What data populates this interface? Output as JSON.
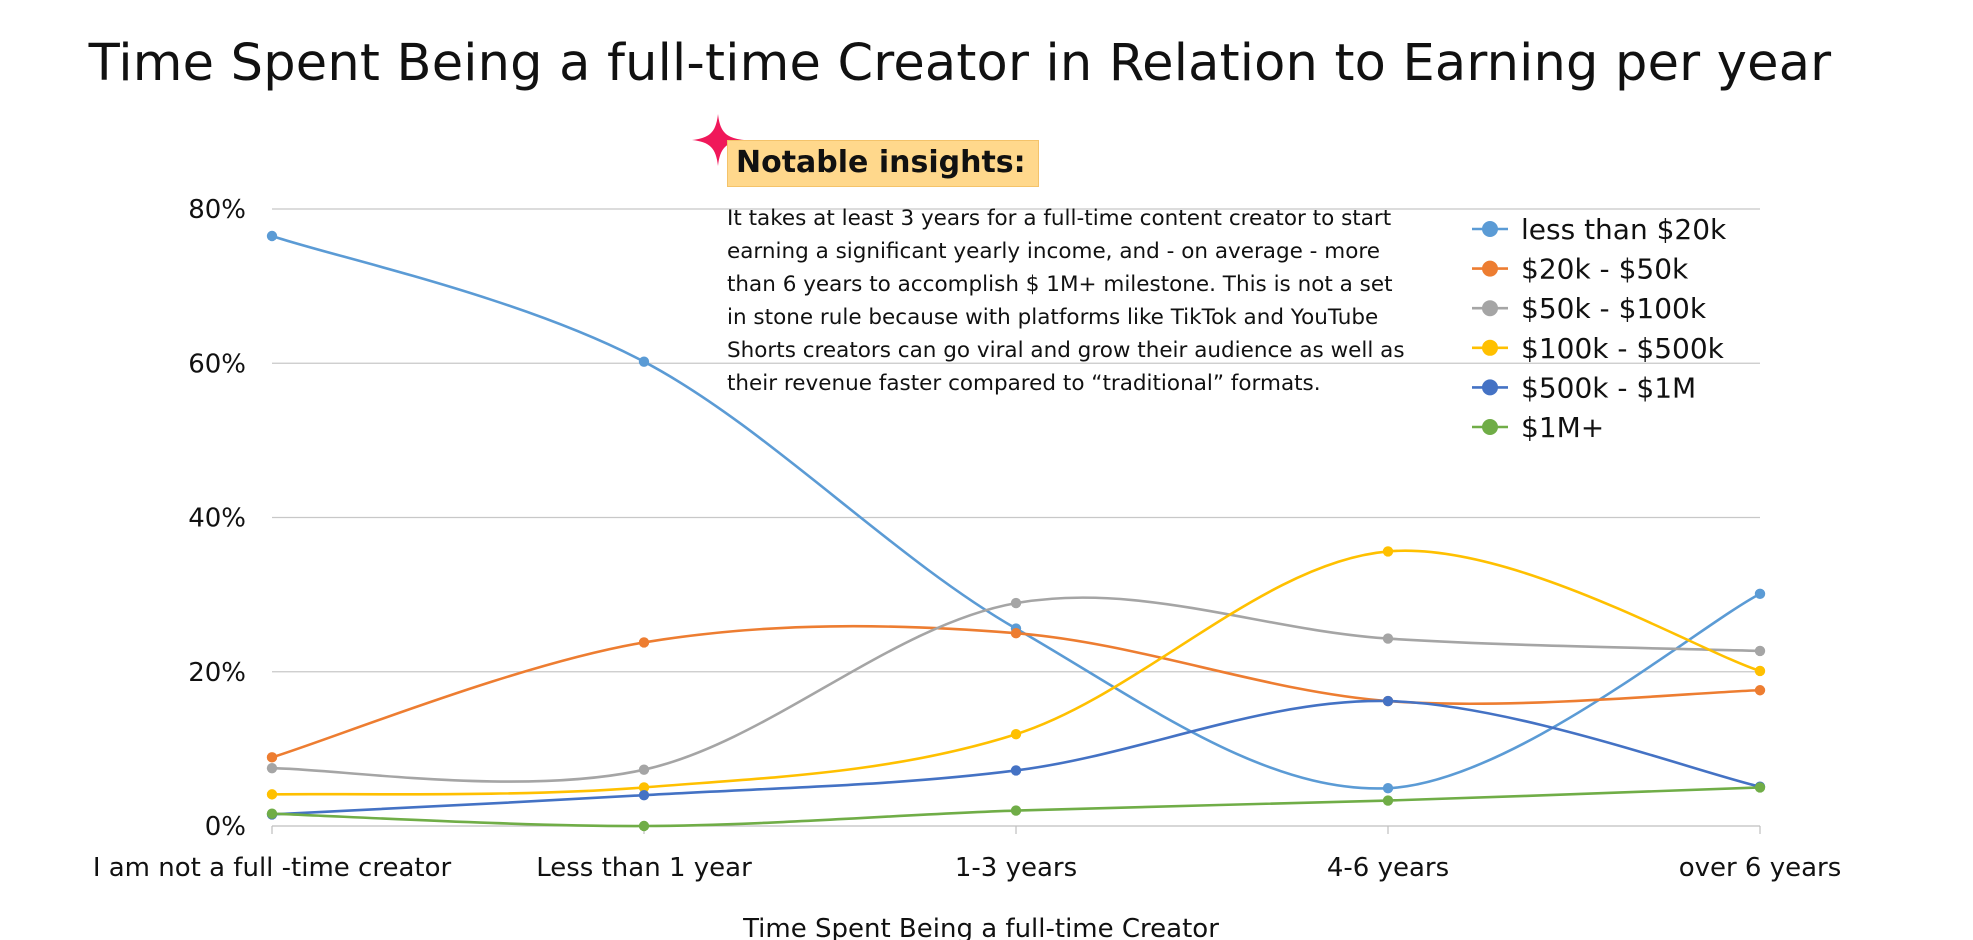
{
  "title": "Time Spent Being a full-time Creator in Relation to Earning per year",
  "insights": {
    "heading": "Notable insights:",
    "body": "It takes at least 3 years for a full-time content creator to start earning a significant yearly income, and - on average - more than 6 years to accomplish $ 1M+ milestone. This is not a set in stone rule because with platforms like TikTok and YouTube Shorts creators can go viral and grow their audience as well as their revenue faster compared to “traditional” formats.",
    "icon": "sparkle-icon",
    "accent": "#f0185a"
  },
  "chart_data": {
    "type": "line",
    "title": "Time Spent Being a full-time Creator in Relation to Earning per year",
    "xlabel": "Time Spent Being a full-time Creator",
    "ylabel": "",
    "ylim": [
      0,
      80
    ],
    "yticks": [
      "0%",
      "20%",
      "40%",
      "60%",
      "80%"
    ],
    "grid": true,
    "smooth": true,
    "legend_position": "top-right",
    "categories": [
      "I am not a full -time creator",
      "Less than 1 year",
      "1-3 years",
      "4-6 years",
      "over 6 years"
    ],
    "series": [
      {
        "name": "less than $20k",
        "color": "#5b9bd5",
        "values": [
          76.5,
          60.2,
          25.6,
          4.9,
          30.1
        ]
      },
      {
        "name": "$20k - $50k",
        "color": "#ed7d31",
        "values": [
          8.9,
          23.8,
          25.0,
          16.2,
          17.6
        ]
      },
      {
        "name": "$50k - $100k",
        "color": "#a5a5a5",
        "values": [
          7.5,
          7.3,
          28.9,
          24.3,
          22.7
        ]
      },
      {
        "name": "$100k - $500k",
        "color": "#ffc000",
        "values": [
          4.1,
          5.0,
          11.9,
          35.6,
          20.1
        ]
      },
      {
        "name": "$500k - $1M",
        "color": "#4472c4",
        "values": [
          1.5,
          4.0,
          7.2,
          16.2,
          5.1
        ]
      },
      {
        "name": "$1M+",
        "color": "#70ad47",
        "values": [
          1.6,
          0.0,
          2.0,
          3.3,
          5.0
        ]
      }
    ]
  }
}
